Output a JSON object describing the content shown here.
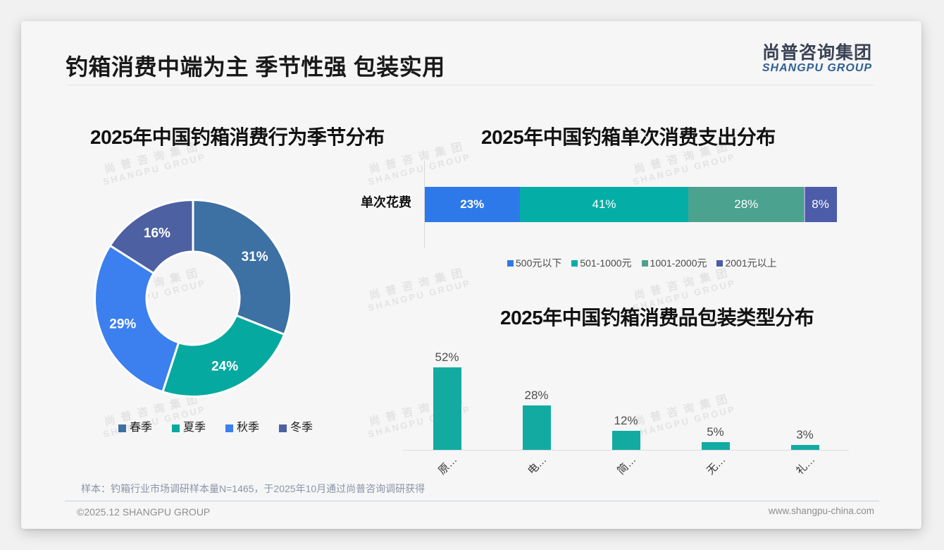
{
  "page": {
    "slide_title": "钓箱消费中端为主 季节性强 包装实用",
    "logo": {
      "cn": "尚普咨询集团",
      "en": "SHANGPU GROUP"
    },
    "watermark": {
      "line1": "尚普咨询集团",
      "line2": "SHANGPU GROUP"
    },
    "footer": {
      "sample_note": "样本：钓箱行业市场调研样本量N=1465，于2025年10月通过尚普咨询调研获得",
      "copyright": "©2025.12 SHANGPU GROUP",
      "website": "www.shangpu-china.com"
    }
  },
  "colors": {
    "page_bg": "#f2f1f1",
    "card_bg": "#f6f6f7",
    "accent_blue": "#2e79ea",
    "accent_teal": "#04aea6",
    "accent_sage": "#4ba28f",
    "accent_indigo": "#4c5ca8"
  },
  "chart_data": [
    {
      "type": "pie",
      "subtype": "donut",
      "title": "2025年中国钓箱消费行为季节分布",
      "categories": [
        "春季",
        "夏季",
        "秋季",
        "冬季"
      ],
      "values": [
        31,
        24,
        29,
        16
      ],
      "labels": [
        "31%",
        "24%",
        "29%",
        "16%"
      ],
      "colors": [
        "#3d70a3",
        "#05a9a0",
        "#3b80ee",
        "#4c60a2"
      ],
      "legend_position": "bottom",
      "start_angle_deg": 0,
      "direction": "clockwise"
    },
    {
      "type": "bar",
      "subtype": "horizontal-stacked",
      "title": "2025年中国钓箱单次消费支出分布",
      "categories": [
        "单次花费"
      ],
      "series": [
        {
          "name": "500元以下",
          "values": [
            23
          ],
          "color": "#2e79ea"
        },
        {
          "name": "501-1000元",
          "values": [
            41
          ],
          "color": "#04aea6"
        },
        {
          "name": "1001-2000元",
          "values": [
            28
          ],
          "color": "#4ba28f"
        },
        {
          "name": "2001元以上",
          "values": [
            8
          ],
          "color": "#4c5ca8"
        }
      ],
      "labels": [
        "23%",
        "41%",
        "28%",
        "8%"
      ],
      "xlim": [
        0,
        100
      ],
      "legend_position": "bottom"
    },
    {
      "type": "bar",
      "subtype": "vertical",
      "title": "2025年中国钓箱消费品包装类型分布",
      "categories": [
        "原…",
        "电…",
        "简…",
        "无…",
        "礼…"
      ],
      "values": [
        52,
        28,
        12,
        5,
        3
      ],
      "labels": [
        "52%",
        "28%",
        "12%",
        "5%",
        "3%"
      ],
      "color": "#13aba1",
      "ylim": [
        0,
        60
      ],
      "grid": false
    }
  ]
}
